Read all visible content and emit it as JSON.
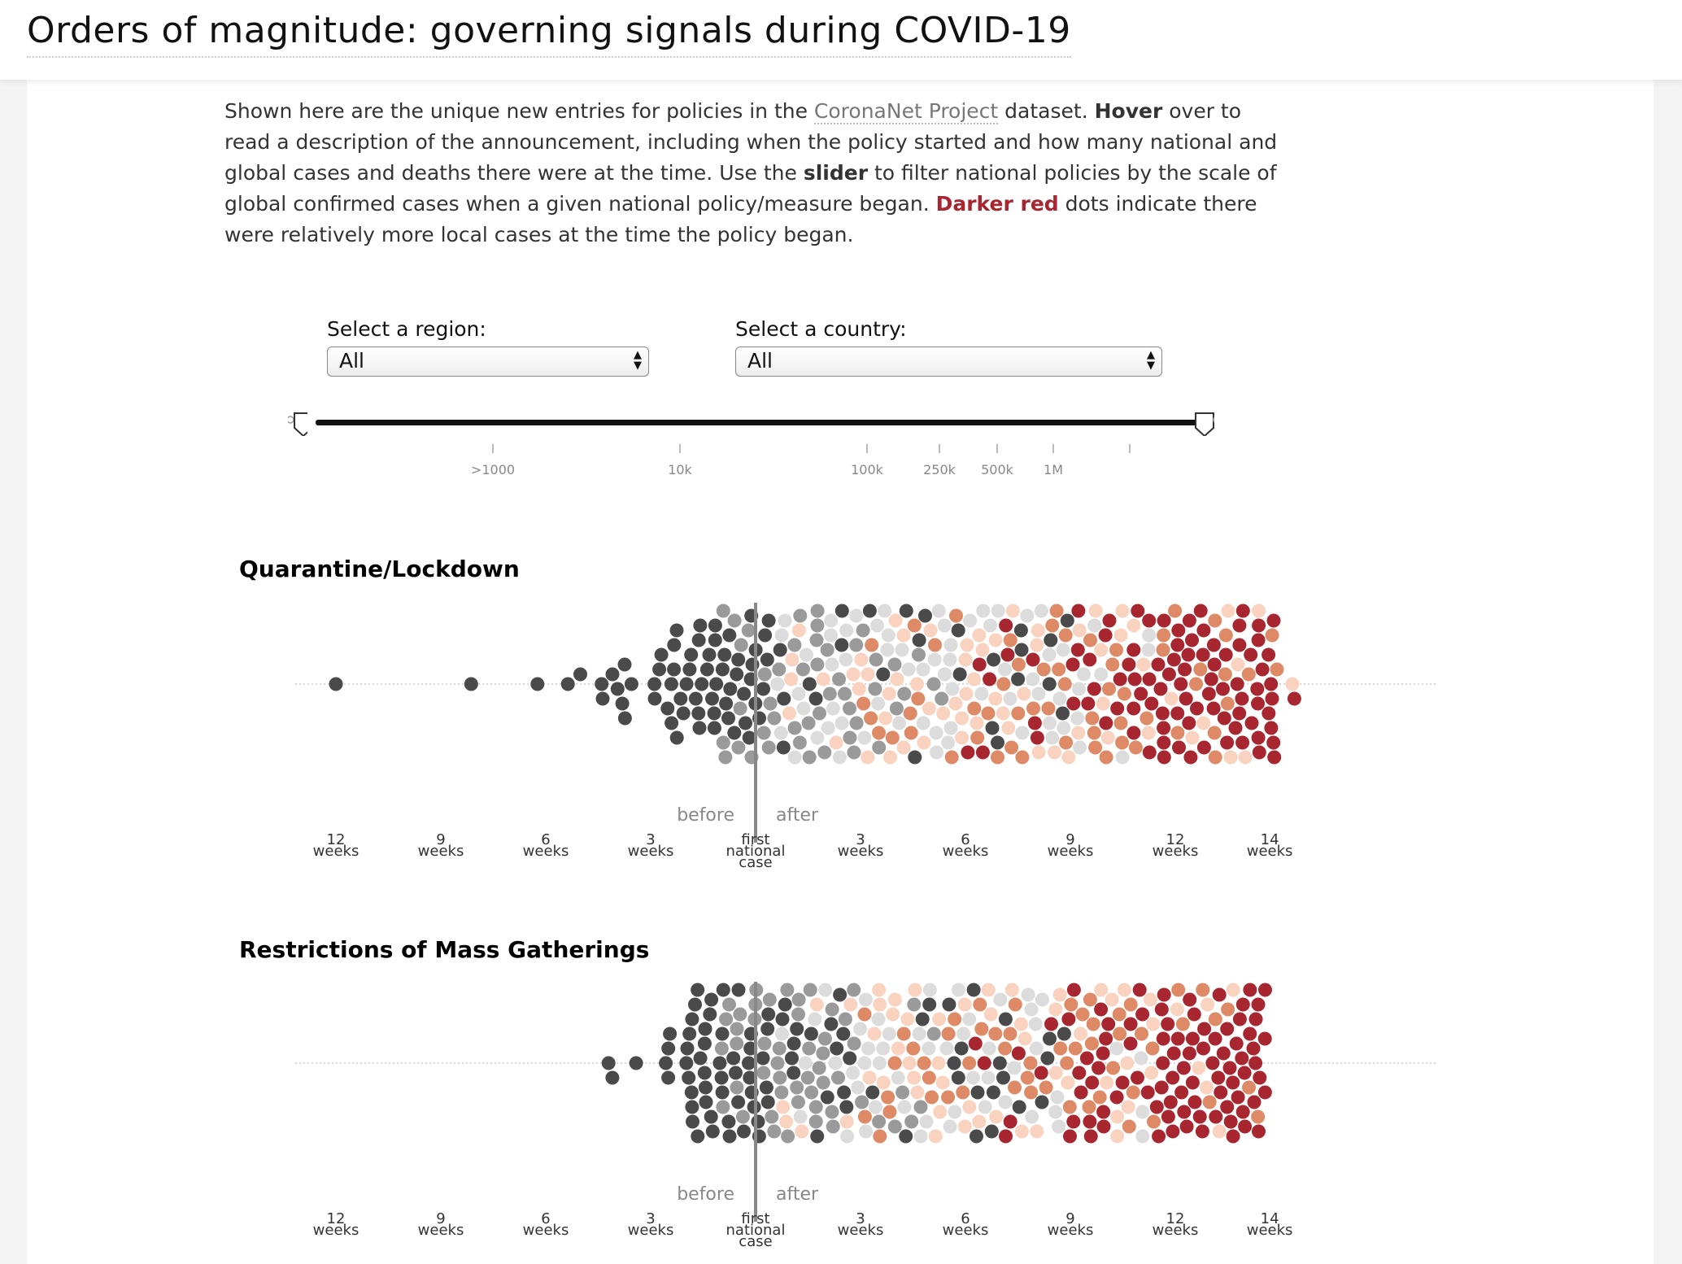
{
  "page": {
    "title": "Orders of magnitude: governing signals during COVID-19"
  },
  "intro": {
    "part1": "Shown here are the unique new entries for policies in the ",
    "link": "CoronaNet Project",
    "part2": " dataset.  ",
    "hover": "Hover",
    "part3": " over to read a description of the announcement, including when the policy started and how many national and global cases and deaths there were at the time. Use the ",
    "slider": "slider",
    "part4": " to filter national policies by the scale of global confirmed cases when a given national policy/measure  began. ",
    "darker_red": "Darker red",
    "part5": " dots indicate there were relatively more local cases at the time the policy began."
  },
  "filters": {
    "region_label": "Select a region:",
    "region_value": "All",
    "country_label": "Select a country:",
    "country_value": "All"
  },
  "slider": {
    "ticks": [
      ">1000",
      "10k",
      "100k",
      "250k",
      "500k",
      "1M"
    ],
    "unlabeled_tick": ""
  },
  "axis": {
    "before": "before",
    "after": "after",
    "labels": [
      [
        "12",
        "weeks"
      ],
      [
        "9",
        "weeks"
      ],
      [
        "6",
        "weeks"
      ],
      [
        "3",
        "weeks"
      ],
      [
        "first",
        "national",
        "case"
      ],
      [
        "3",
        "weeks"
      ],
      [
        "6",
        "weeks"
      ],
      [
        "9",
        "weeks"
      ],
      [
        "12",
        "weeks"
      ],
      [
        "14",
        "weeks"
      ]
    ]
  },
  "colors": {
    "dark": "#4a4a4a",
    "mid_gray": "#9a9a9a",
    "light_gray": "#dcdcdc",
    "peach": "#f9d3bf",
    "orange": "#df8a66",
    "red": "#a8262f",
    "link": "#777777"
  },
  "chart_data": [
    {
      "type": "scatter",
      "title": "Quarantine/Lockdown",
      "xlabel": "",
      "ylabel": "",
      "x_unit": "weeks relative to first national case",
      "xlim": [
        -12.5,
        15
      ],
      "density_by_week": [
        {
          "week": -12,
          "count": 1
        },
        {
          "week": -9,
          "count": 2
        },
        {
          "week": -6,
          "count": 10
        },
        {
          "week": -3,
          "count": 30
        },
        {
          "week": -1,
          "count": 55
        },
        {
          "week": 0,
          "count": 90
        },
        {
          "week": 2,
          "count": 110
        },
        {
          "week": 4,
          "count": 100
        },
        {
          "week": 6,
          "count": 100
        },
        {
          "week": 8,
          "count": 110
        },
        {
          "week": 10,
          "count": 120
        },
        {
          "week": 12,
          "count": 110
        },
        {
          "week": 14,
          "count": 40
        },
        {
          "week": 15,
          "count": 3
        }
      ]
    },
    {
      "type": "scatter",
      "title": "Restrictions of Mass Gatherings",
      "xlabel": "",
      "ylabel": "",
      "x_unit": "weeks relative to first national case",
      "xlim": [
        -12.5,
        15
      ],
      "density_by_week": [
        {
          "week": -6,
          "count": 3
        },
        {
          "week": -3,
          "count": 4
        },
        {
          "week": -2,
          "count": 25
        },
        {
          "week": -1,
          "count": 45
        },
        {
          "week": 0,
          "count": 90
        },
        {
          "week": 2,
          "count": 100
        },
        {
          "week": 4,
          "count": 80
        },
        {
          "week": 6,
          "count": 85
        },
        {
          "week": 8,
          "count": 90
        },
        {
          "week": 10,
          "count": 105
        },
        {
          "week": 12,
          "count": 95
        },
        {
          "week": 14,
          "count": 35
        }
      ]
    }
  ]
}
